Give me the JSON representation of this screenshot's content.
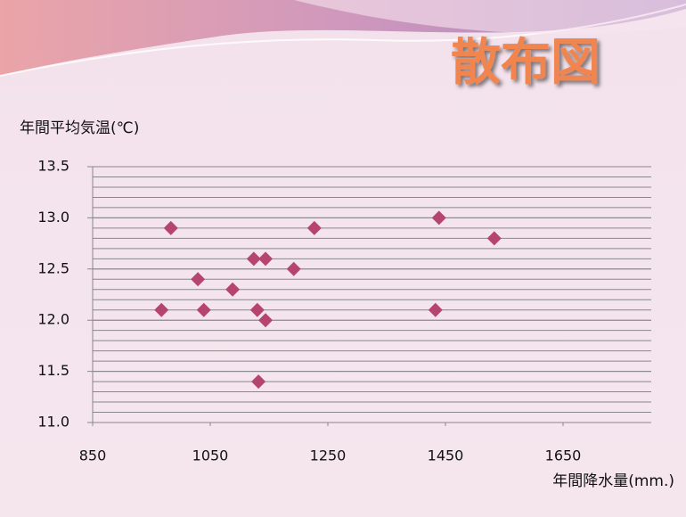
{
  "chart_data": {
    "type": "scatter",
    "title": "散布図",
    "ylabel": "年間平均気温(℃)",
    "xlabel": "年間降水量(mm.)",
    "x": [
      967,
      983,
      1029,
      1039,
      1088,
      1124,
      1130,
      1132,
      1144,
      1144,
      1192,
      1227,
      1433,
      1439,
      1533
    ],
    "y": [
      12.1,
      12.9,
      12.4,
      12.1,
      12.3,
      12.6,
      12.1,
      11.4,
      12.6,
      12.0,
      12.5,
      12.9,
      12.1,
      13.0,
      12.8
    ],
    "color": "#b5456f",
    "xlim": [
      850,
      1800
    ],
    "xticks": [
      850,
      1050,
      1250,
      1450,
      1650
    ],
    "ylim": [
      11,
      13.5
    ],
    "yticks": [
      {
        "value": 11,
        "label": "11.0"
      },
      {
        "value": 11.5,
        "label": "11.5"
      },
      {
        "value": 12,
        "label": "12.0"
      },
      {
        "value": 12.5,
        "label": "12.5"
      },
      {
        "value": 13,
        "label": "13.0"
      },
      {
        "value": 13.5,
        "label": "13.5"
      }
    ],
    "grid": true,
    "ygrid_step": 0.1
  }
}
